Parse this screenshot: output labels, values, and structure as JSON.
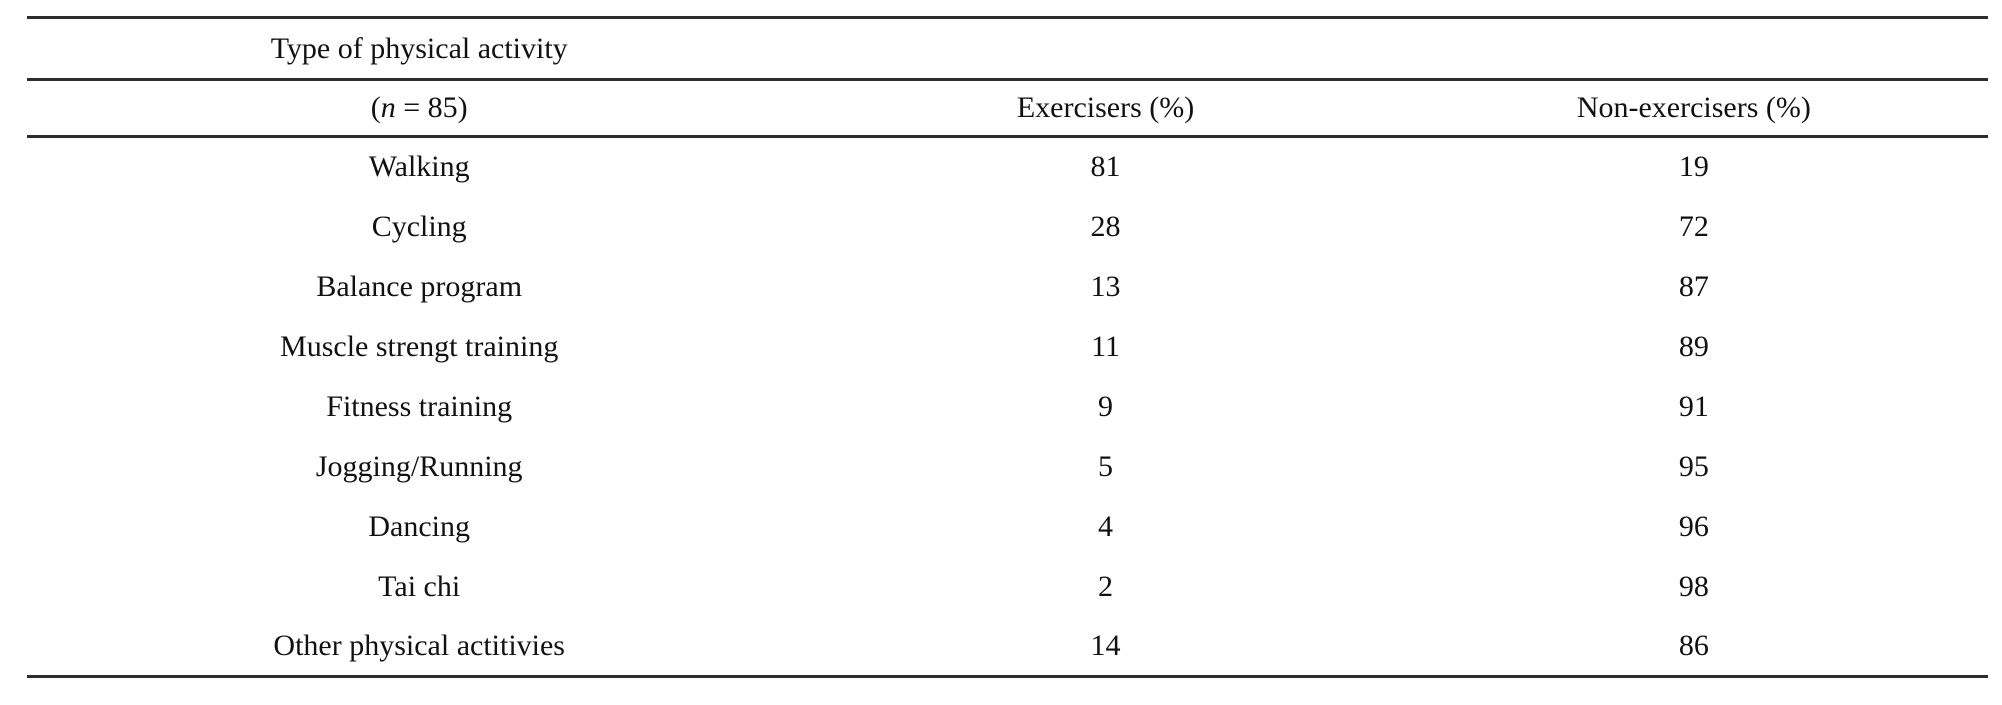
{
  "table": {
    "header": {
      "col1_line1": "Type of physical activity",
      "col1_line2": {
        "open": "(",
        "symbol": "n",
        "rest": " = 85)"
      },
      "col2": "Exercisers (%)",
      "col3": "Non-exercisers (%)"
    },
    "rows": [
      {
        "activity": "Walking",
        "exercisers": "81",
        "non_exercisers": "19"
      },
      {
        "activity": "Cycling",
        "exercisers": "28",
        "non_exercisers": "72"
      },
      {
        "activity": "Balance program",
        "exercisers": "13",
        "non_exercisers": "87"
      },
      {
        "activity": "Muscle strengt training",
        "exercisers": "11",
        "non_exercisers": "89"
      },
      {
        "activity": "Fitness training",
        "exercisers": "9",
        "non_exercisers": "91"
      },
      {
        "activity": "Jogging/Running",
        "exercisers": "5",
        "non_exercisers": "95"
      },
      {
        "activity": "Dancing",
        "exercisers": "4",
        "non_exercisers": "96"
      },
      {
        "activity": "Tai chi",
        "exercisers": "2",
        "non_exercisers": "98"
      },
      {
        "activity": "Other physical actitivies",
        "exercisers": "14",
        "non_exercisers": "86"
      }
    ]
  }
}
